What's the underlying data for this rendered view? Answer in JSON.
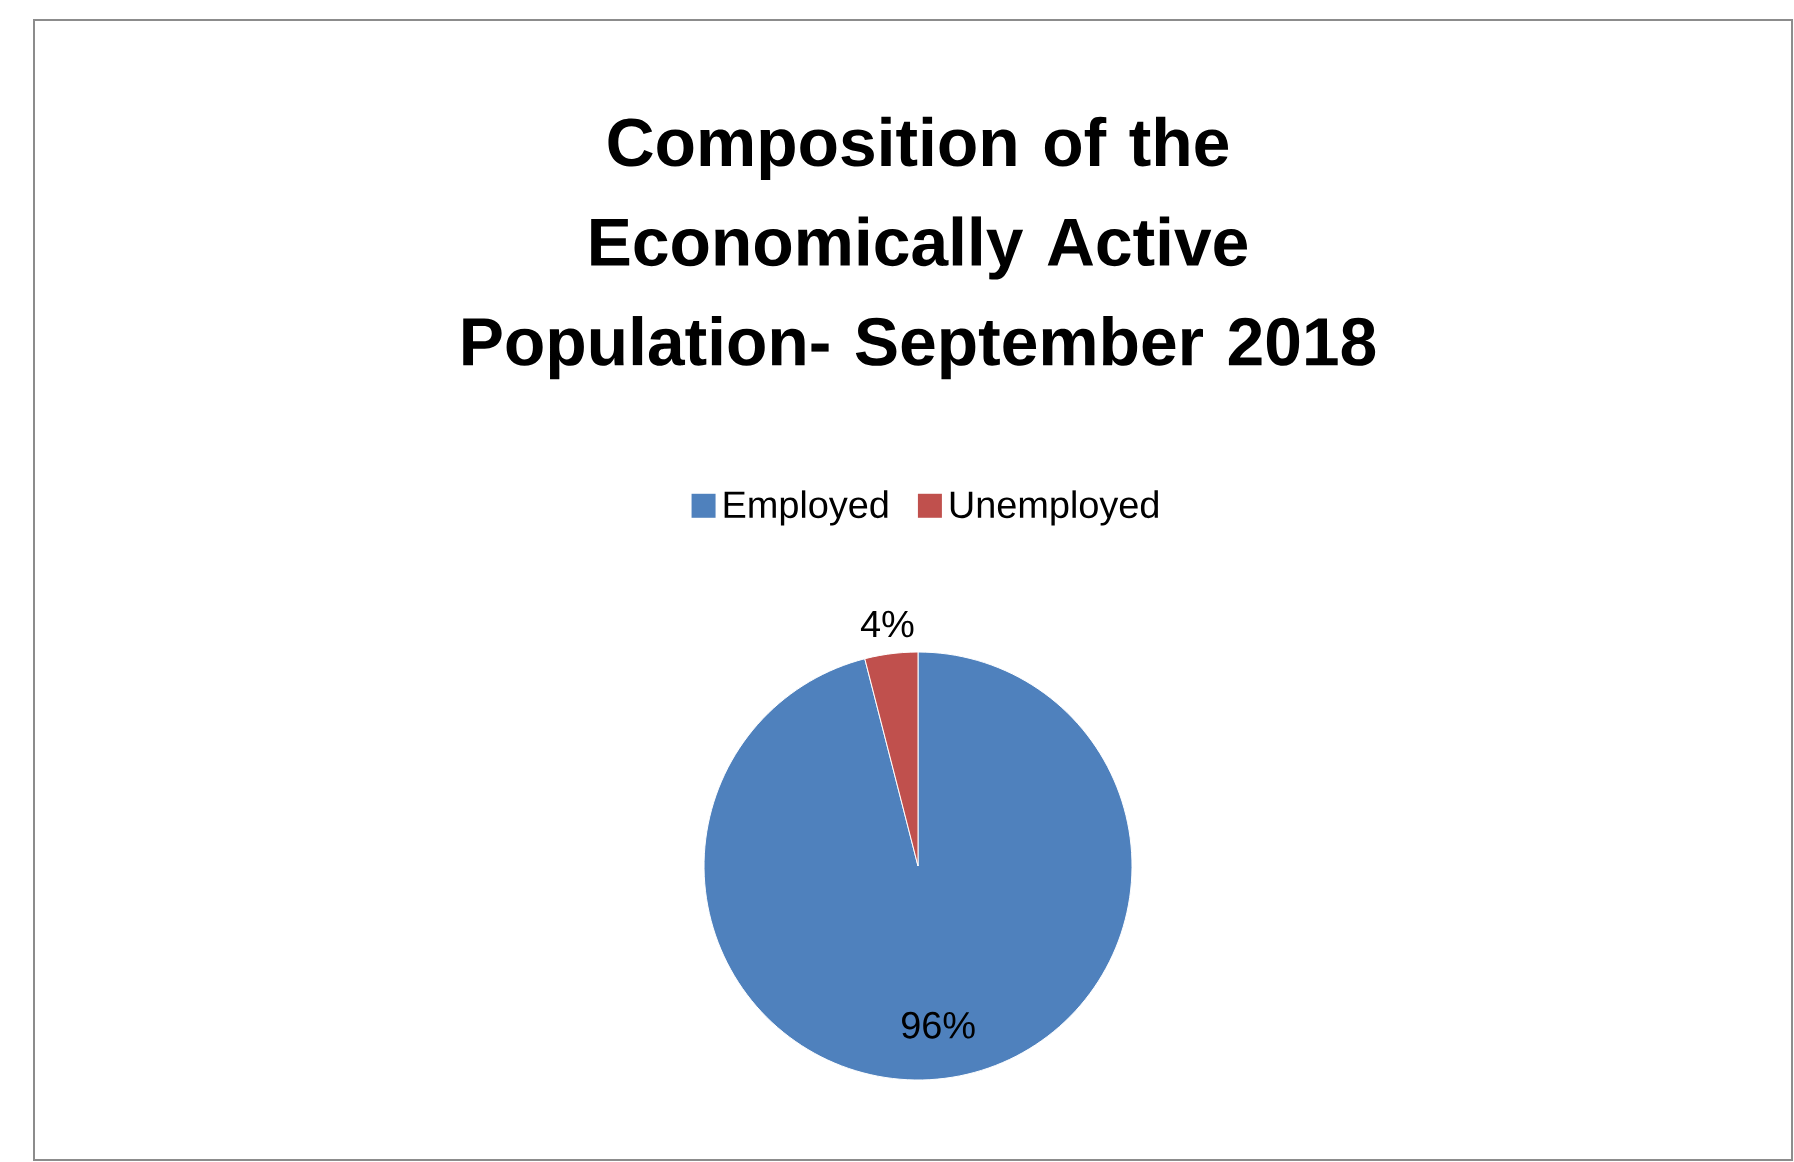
{
  "chart_data": {
    "type": "pie",
    "title": "Composition of the Economically Active Population- September 2018",
    "categories": [
      "Employed",
      "Unemployed"
    ],
    "values": [
      96,
      4
    ],
    "colors": [
      "#4f81bd",
      "#c0504d"
    ],
    "value_labels": [
      "96%",
      "4%"
    ],
    "legend": "top"
  }
}
